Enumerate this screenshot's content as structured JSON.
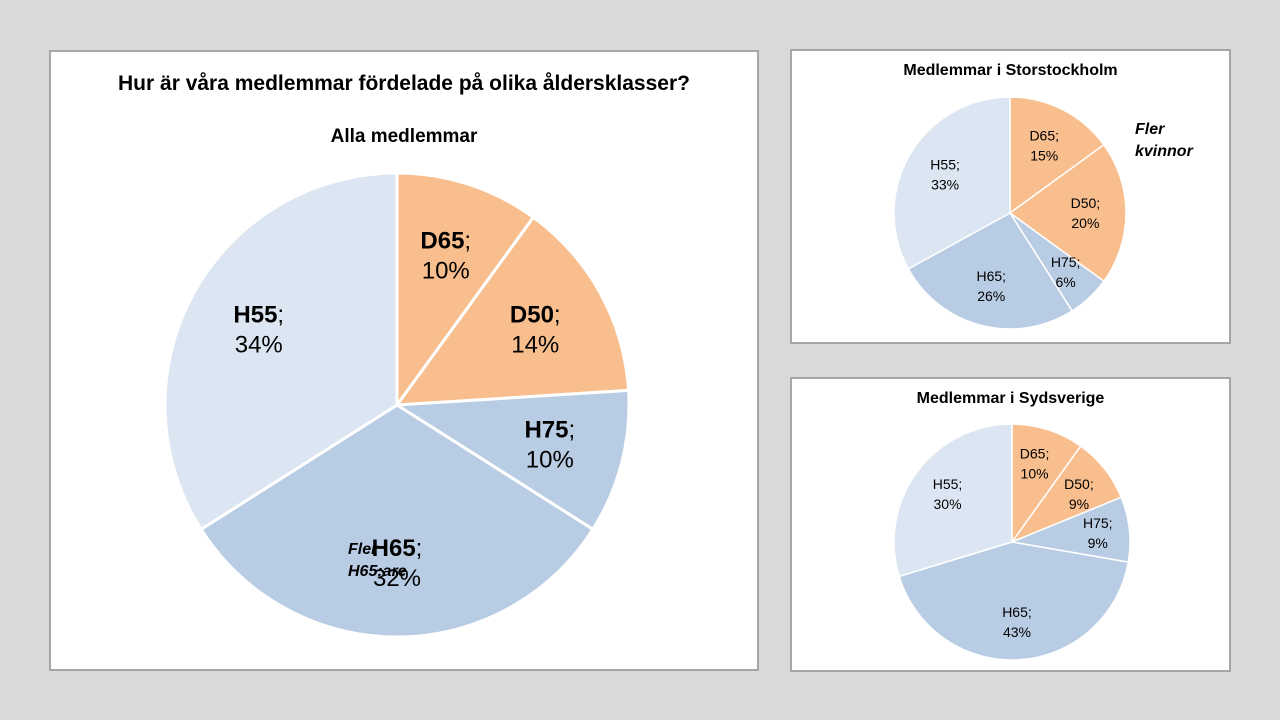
{
  "page_title": "Hur är våra medlemmar fördelade på olika åldersklasser?",
  "colors": {
    "female": "#f8be8e",
    "male_light": "#dce6f2",
    "male_mid": "#b8cce4",
    "border": "#ffffff",
    "background": "#d9d9d9"
  },
  "notes": {
    "sthlm": [
      "Fler",
      "kvinnor"
    ],
    "syd": [
      "Fler",
      "H65:are"
    ]
  },
  "chart_data": [
    {
      "type": "pie",
      "title": "Alla medlemmar",
      "start_angle_deg": 0,
      "direction": "clockwise",
      "slices": [
        {
          "label": "D65",
          "value": 10,
          "color": "#f8be8e"
        },
        {
          "label": "D50",
          "value": 14,
          "color": "#f8be8e"
        },
        {
          "label": "H75",
          "value": 10,
          "color": "#b8cce4"
        },
        {
          "label": "H65",
          "value": 32,
          "color": "#b8cce4"
        },
        {
          "label": "H55",
          "value": 34,
          "color": "#dce6f2"
        }
      ],
      "value_suffix": "%",
      "label_separator": ";"
    },
    {
      "type": "pie",
      "title": "Medlemmar  i Storstockholm",
      "start_angle_deg": 0,
      "direction": "clockwise",
      "slices": [
        {
          "label": "D65",
          "value": 15,
          "color": "#f8be8e"
        },
        {
          "label": "D50",
          "value": 20,
          "color": "#f8be8e"
        },
        {
          "label": "H75",
          "value": 6,
          "color": "#b8cce4"
        },
        {
          "label": "H65",
          "value": 26,
          "color": "#b8cce4"
        },
        {
          "label": "H55",
          "value": 33,
          "color": "#dce6f2"
        }
      ],
      "value_suffix": "%",
      "label_separator": ";"
    },
    {
      "type": "pie",
      "title": "Medlemmar  i Sydsverige",
      "start_angle_deg": 0,
      "direction": "clockwise",
      "slices": [
        {
          "label": "D65",
          "value": 10,
          "color": "#f8be8e"
        },
        {
          "label": "D50",
          "value": 9,
          "color": "#f8be8e"
        },
        {
          "label": "H75",
          "value": 9,
          "color": "#b8cce4"
        },
        {
          "label": "H65",
          "value": 43,
          "color": "#b8cce4"
        },
        {
          "label": "H55",
          "value": 30,
          "color": "#dce6f2"
        }
      ],
      "value_suffix": "%",
      "label_separator": ";"
    }
  ]
}
